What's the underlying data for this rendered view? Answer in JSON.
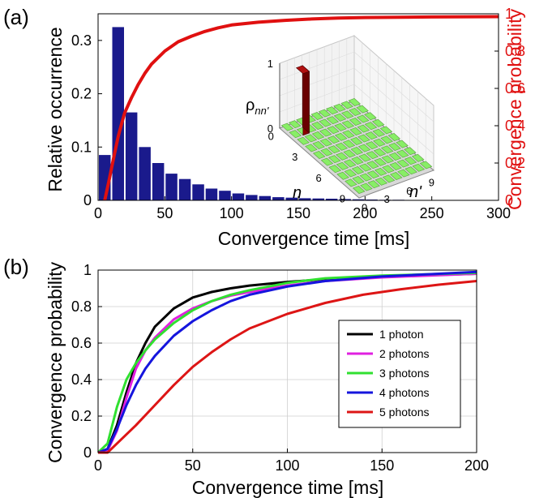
{
  "panel_labels": {
    "a": "(a)",
    "b": "(b)"
  },
  "colors": {
    "bar": "#1a1a8c",
    "prob_curve": "#e01010",
    "axis_right": "#e01010",
    "inset_floor": "#88ee66",
    "inset_peak": "#8b0000"
  },
  "inset": {
    "zlabel_main": "ρ",
    "zlabel_sub": "nn'",
    "row_label": "n",
    "col_label": "n'",
    "z_ticks": [
      "0",
      "1"
    ],
    "row_ticks": [
      "0",
      "3",
      "6",
      "9"
    ],
    "col_ticks": [
      "0",
      "3",
      "6",
      "9"
    ],
    "peak_index": 1,
    "peak_value": 1
  },
  "chart_data": [
    {
      "type": "bar",
      "panel": "(a)",
      "title": "",
      "xlabel": "Convergence time [ms]",
      "ylabel": "Relative occurrence",
      "y2label": "Convergence probability",
      "xlim": [
        0,
        300
      ],
      "ylim": [
        0,
        0.35
      ],
      "y2lim": [
        0,
        1
      ],
      "xticks": [
        0,
        50,
        100,
        150,
        200,
        250,
        300
      ],
      "yticks": [
        0,
        0.1,
        0.2,
        0.3
      ],
      "y2ticks": [
        0,
        0.2,
        0.4,
        0.6,
        0.8,
        1
      ],
      "bar_width": 10,
      "bar_centers": [
        5,
        15,
        25,
        35,
        45,
        55,
        65,
        75,
        85,
        95,
        105,
        115,
        125,
        135,
        145,
        155,
        165,
        175,
        185,
        195,
        205,
        215,
        225,
        235,
        245
      ],
      "values": [
        0.085,
        0.325,
        0.165,
        0.1,
        0.07,
        0.05,
        0.04,
        0.03,
        0.022,
        0.018,
        0.013,
        0.01,
        0.008,
        0.006,
        0.005,
        0.004,
        0.0035,
        0.003,
        0.0025,
        0.002,
        0.0015,
        0.001,
        0.001,
        0.0008,
        0.0005
      ],
      "curve": {
        "x": [
          5,
          8,
          10,
          12,
          15,
          18,
          20,
          25,
          30,
          35,
          40,
          50,
          60,
          70,
          80,
          90,
          100,
          120,
          140,
          160,
          180,
          200,
          250,
          300
        ],
        "y": [
          0,
          0.1,
          0.17,
          0.24,
          0.34,
          0.42,
          0.47,
          0.55,
          0.62,
          0.68,
          0.73,
          0.8,
          0.85,
          0.88,
          0.905,
          0.925,
          0.94,
          0.955,
          0.965,
          0.972,
          0.977,
          0.98,
          0.983,
          0.985
        ]
      }
    },
    {
      "type": "line",
      "panel": "(b)",
      "title": "",
      "xlabel": "Convergence time [ms]",
      "ylabel": "Convergence probability",
      "xlim": [
        0,
        200
      ],
      "ylim": [
        0,
        1
      ],
      "xticks": [
        0,
        50,
        100,
        150,
        200
      ],
      "yticks": [
        0,
        0.2,
        0.4,
        0.6,
        0.8,
        1
      ],
      "grid": true,
      "legend_position": "center-right",
      "series": [
        {
          "name": "1 photon",
          "color": "#000000",
          "x": [
            0,
            5,
            10,
            15,
            20,
            25,
            30,
            40,
            50,
            60,
            70,
            80,
            100,
            120,
            150,
            200
          ],
          "y": [
            0,
            0.02,
            0.15,
            0.33,
            0.49,
            0.6,
            0.69,
            0.79,
            0.85,
            0.88,
            0.9,
            0.915,
            0.935,
            0.95,
            0.965,
            0.98
          ]
        },
        {
          "name": "2 photons",
          "color": "#e020e0",
          "x": [
            0,
            5,
            10,
            15,
            20,
            25,
            30,
            40,
            50,
            60,
            70,
            80,
            100,
            120,
            150,
            200
          ],
          "y": [
            0,
            0.01,
            0.12,
            0.3,
            0.46,
            0.56,
            0.63,
            0.73,
            0.79,
            0.83,
            0.86,
            0.88,
            0.915,
            0.94,
            0.96,
            0.98
          ]
        },
        {
          "name": "3 photons",
          "color": "#30e030",
          "x": [
            0,
            5,
            10,
            15,
            20,
            25,
            30,
            40,
            50,
            60,
            70,
            80,
            100,
            120,
            150,
            200
          ],
          "y": [
            0,
            0.05,
            0.25,
            0.4,
            0.49,
            0.56,
            0.62,
            0.71,
            0.78,
            0.83,
            0.865,
            0.89,
            0.93,
            0.955,
            0.97,
            0.985
          ]
        },
        {
          "name": "4 photons",
          "color": "#1515dd",
          "x": [
            0,
            5,
            10,
            15,
            20,
            25,
            30,
            40,
            50,
            60,
            70,
            80,
            100,
            120,
            150,
            200
          ],
          "y": [
            0,
            0.02,
            0.13,
            0.26,
            0.37,
            0.46,
            0.53,
            0.64,
            0.72,
            0.78,
            0.83,
            0.865,
            0.91,
            0.94,
            0.965,
            0.99
          ]
        },
        {
          "name": "5 photons",
          "color": "#dd1515",
          "x": [
            0,
            5,
            10,
            20,
            30,
            40,
            50,
            60,
            70,
            80,
            90,
            100,
            120,
            140,
            160,
            180,
            200
          ],
          "y": [
            0,
            0,
            0.05,
            0.15,
            0.26,
            0.37,
            0.47,
            0.55,
            0.62,
            0.68,
            0.72,
            0.76,
            0.82,
            0.865,
            0.895,
            0.92,
            0.94
          ]
        }
      ]
    }
  ]
}
